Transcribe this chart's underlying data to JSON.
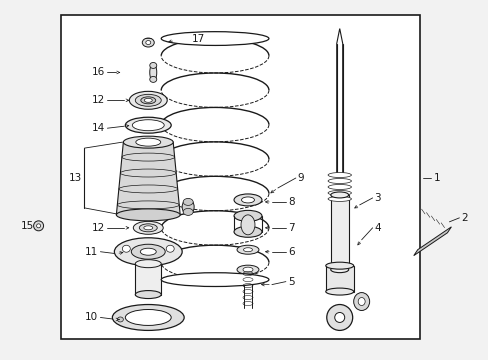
{
  "bg_color": "#f2f2f2",
  "box_color": "#ffffff",
  "line_color": "#1a1a1a",
  "label_color": "#111111",
  "fig_width": 4.89,
  "fig_height": 3.6,
  "dpi": 100
}
